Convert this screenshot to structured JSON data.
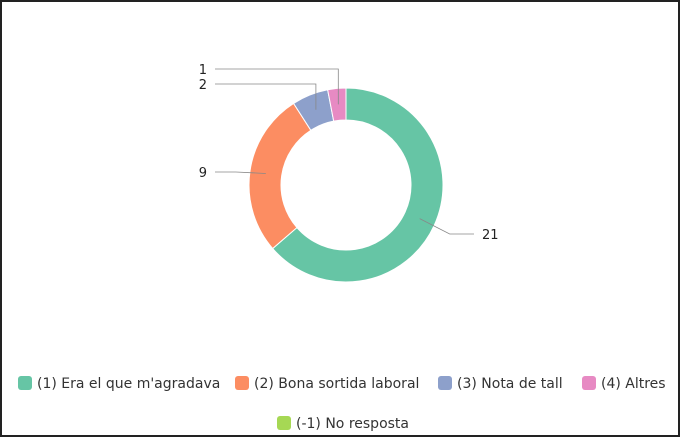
{
  "chart_data": {
    "type": "pie",
    "variant": "donut",
    "title": "",
    "categories": [
      "(1) Era el que m'agradava",
      "(2) Bona sortida laboral",
      "(3) Nota de tall",
      "(4) Altres",
      "(-1) No resposta"
    ],
    "values": [
      21,
      9,
      2,
      1,
      0
    ],
    "colors": [
      "#66c5a5",
      "#fc8d62",
      "#8da0cb",
      "#e78ac3",
      "#a6d854"
    ],
    "legend": "bottom",
    "data_labels": true
  }
}
